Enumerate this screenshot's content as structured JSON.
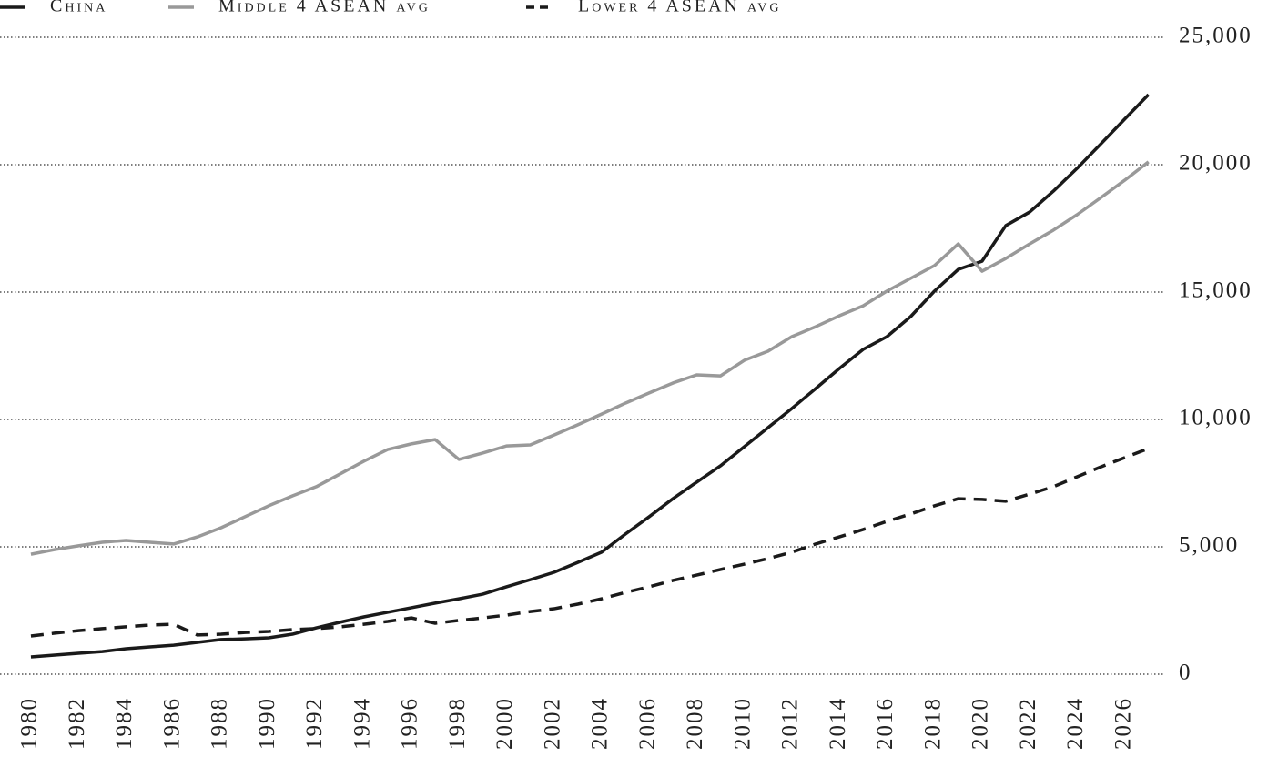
{
  "chart_data": {
    "type": "line",
    "x": [
      1980,
      1981,
      1982,
      1983,
      1984,
      1985,
      1986,
      1987,
      1988,
      1989,
      1990,
      1991,
      1992,
      1993,
      1994,
      1995,
      1996,
      1997,
      1998,
      1999,
      2000,
      2001,
      2002,
      2003,
      2004,
      2005,
      2006,
      2007,
      2008,
      2009,
      2010,
      2011,
      2012,
      2013,
      2014,
      2015,
      2016,
      2017,
      2018,
      2019,
      2020,
      2021,
      2022,
      2023,
      2024,
      2025,
      2026,
      2027
    ],
    "series": [
      {
        "name": "China",
        "color": "#1a1a1a",
        "style": "solid",
        "values": [
          680,
          750,
          820,
          890,
          1000,
          1070,
          1140,
          1250,
          1360,
          1390,
          1430,
          1570,
          1820,
          2040,
          2250,
          2430,
          2610,
          2790,
          2960,
          3140,
          3430,
          3710,
          4000,
          4390,
          4790,
          5500,
          6180,
          6890,
          7540,
          8180,
          8930,
          9680,
          10430,
          11210,
          12000,
          12750,
          13250,
          14040,
          15040,
          15890,
          16210,
          17610,
          18140,
          18960,
          19860,
          20820,
          21790,
          22750
        ]
      },
      {
        "name": "Middle 4 ASEAN avg",
        "color": "#999999",
        "style": "solid",
        "values": [
          4710,
          4890,
          5040,
          5180,
          5250,
          5180,
          5110,
          5390,
          5750,
          6180,
          6610,
          7000,
          7360,
          7860,
          8360,
          8820,
          9040,
          9210,
          8430,
          8680,
          8960,
          9000,
          9390,
          9790,
          10210,
          10640,
          11040,
          11430,
          11750,
          11710,
          12320,
          12680,
          13250,
          13640,
          14070,
          14460,
          15040,
          15540,
          16040,
          16890,
          15820,
          16320,
          16890,
          17430,
          18040,
          18710,
          19390,
          20110
        ]
      },
      {
        "name": "Lower 4 ASEAN avg",
        "color": "#1a1a1a",
        "style": "dashed",
        "values": [
          1500,
          1610,
          1710,
          1790,
          1860,
          1930,
          1960,
          1540,
          1570,
          1640,
          1680,
          1750,
          1790,
          1860,
          1960,
          2070,
          2210,
          2000,
          2110,
          2210,
          2320,
          2460,
          2570,
          2750,
          2960,
          3210,
          3430,
          3680,
          3890,
          4110,
          4320,
          4540,
          4790,
          5110,
          5390,
          5680,
          6000,
          6290,
          6610,
          6890,
          6860,
          6790,
          7070,
          7360,
          7750,
          8140,
          8500,
          8860
        ]
      }
    ],
    "xlim": [
      1978.7,
      2027.7
    ],
    "xticks": [
      1980,
      1982,
      1984,
      1986,
      1988,
      1990,
      1992,
      1994,
      1996,
      1998,
      2000,
      2002,
      2004,
      2006,
      2008,
      2010,
      2012,
      2014,
      2016,
      2018,
      2020,
      2022,
      2024,
      2026
    ],
    "ylim": [
      0,
      25000
    ],
    "yticks": [
      0,
      {
        "value": 5000,
        "label": "5,000"
      },
      {
        "value": 10000,
        "label": "10,000"
      },
      {
        "value": 15000,
        "label": "15,000"
      },
      {
        "value": 20000,
        "label": "20,000"
      },
      {
        "value": 25000,
        "label": "25,000"
      }
    ],
    "grid": true
  }
}
